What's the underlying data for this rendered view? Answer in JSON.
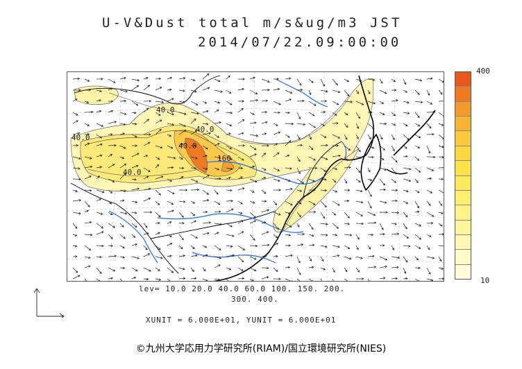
{
  "title": {
    "line1": "U-V&Dust total m/s&ug/m3 JST",
    "line2": "2014/07/22.09:00:00"
  },
  "contour_labels": {
    "levels_line1": "lev= 10.0 20.0 40.0 60.0 100. 150. 200.",
    "levels_line2": "300. 400.",
    "inline": [
      "40.0",
      "40.0",
      "40.0",
      "40.0",
      "160",
      "40.0"
    ]
  },
  "units_line": "XUNIT = 6.000E+01, YUNIT = 6.000E+01",
  "colorbar": {
    "max_label": "400",
    "min_label": "10",
    "colors": [
      "#e8581a",
      "#f07a22",
      "#f49a2c",
      "#f6b433",
      "#f8c93a",
      "#fbd83f",
      "#fde24a",
      "#fdea5c",
      "#fef06f",
      "#fff385",
      "#fff69c",
      "#fff8b3",
      "#fffac7",
      "#fffcdc"
    ]
  },
  "copyright": "©九州大学応用力学研究所(RIAM)/国立環境研究所(NIES)",
  "colors": {
    "dust_low": "#fff8c0",
    "dust_mid": "#fde24a",
    "dust_high": "#f07a22",
    "river": "#1a6bff",
    "coast": "#000000"
  }
}
